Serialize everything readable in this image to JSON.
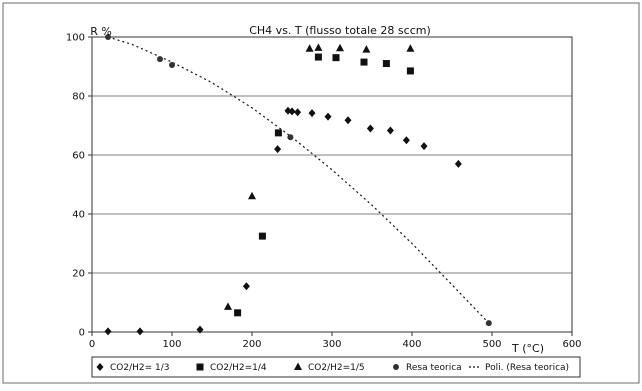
{
  "chart_data": {
    "type": "scatter",
    "title": "CH4 vs. T (flusso totale 28 sccm)",
    "xlabel": "T (°C)",
    "ylabel": "R %",
    "xlim": [
      0,
      600
    ],
    "ylim": [
      0,
      100
    ],
    "xticks": [
      0,
      100,
      200,
      300,
      400,
      500,
      600
    ],
    "yticks": [
      0,
      20,
      40,
      60,
      80,
      100
    ],
    "grid": "horizontal",
    "legend_position": "bottom",
    "series": [
      {
        "name": "CO2/H2= 1/3",
        "marker": "diamond",
        "points": [
          [
            20,
            0.2
          ],
          [
            60,
            0.2
          ],
          [
            135,
            0.8
          ],
          [
            193,
            15.5
          ],
          [
            232,
            62
          ],
          [
            245,
            75
          ],
          [
            250,
            74.8
          ],
          [
            257,
            74.5
          ],
          [
            275,
            74.2
          ],
          [
            295,
            73
          ],
          [
            320,
            71.8
          ],
          [
            348,
            69
          ],
          [
            373,
            68.3
          ],
          [
            393,
            65
          ],
          [
            415,
            63
          ],
          [
            458,
            57
          ]
        ]
      },
      {
        "name": "CO2/H2=1/4",
        "marker": "square",
        "points": [
          [
            182,
            6.5
          ],
          [
            213,
            32.5
          ],
          [
            233,
            67.5
          ],
          [
            283,
            93.2
          ],
          [
            305,
            93
          ],
          [
            340,
            91.5
          ],
          [
            368,
            91
          ],
          [
            398,
            88.5
          ]
        ]
      },
      {
        "name": "CO2/H2=1/5",
        "marker": "triangle",
        "points": [
          [
            170,
            8.5
          ],
          [
            200,
            46
          ],
          [
            272,
            96
          ],
          [
            283,
            96.3
          ],
          [
            310,
            96.2
          ],
          [
            343,
            95.7
          ],
          [
            398,
            96
          ]
        ]
      },
      {
        "name": "Resa teorica",
        "marker": "circle",
        "points": [
          [
            20,
            100
          ],
          [
            85,
            92.5
          ],
          [
            100,
            90.5
          ],
          [
            248,
            66
          ],
          [
            496,
            3
          ]
        ]
      },
      {
        "name": "Poli. (Resa teorica)",
        "marker": "dotted-line",
        "points": [
          [
            20,
            100
          ],
          [
            50,
            97.5
          ],
          [
            100,
            91.5
          ],
          [
            150,
            84.5
          ],
          [
            200,
            76
          ],
          [
            250,
            66
          ],
          [
            300,
            55
          ],
          [
            350,
            43
          ],
          [
            400,
            30
          ],
          [
            450,
            16
          ],
          [
            496,
            3
          ]
        ]
      }
    ]
  }
}
